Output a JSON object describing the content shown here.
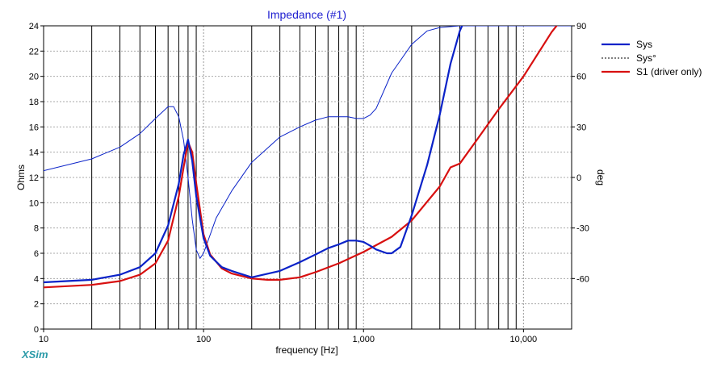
{
  "app": {
    "brand": "XSim"
  },
  "chart_data": {
    "type": "line",
    "title": "Impedance (#1)",
    "xlabel": "frequency [Hz]",
    "ylabel": "Ohms",
    "y2label": "deg",
    "xscale": "log",
    "xlim": [
      10,
      20000
    ],
    "ylim": [
      0,
      24
    ],
    "y2lim": [
      -90,
      90
    ],
    "grid": true,
    "legend_position": "right",
    "x_ticks": [
      {
        "value": 10,
        "label": "10"
      },
      {
        "value": 100,
        "label": "100"
      },
      {
        "value": 1000,
        "label": "1,000"
      },
      {
        "value": 10000,
        "label": "10,000"
      }
    ],
    "y_ticks": [
      {
        "value": 0,
        "label": "0"
      },
      {
        "value": 2,
        "label": "2"
      },
      {
        "value": 4,
        "label": "4"
      },
      {
        "value": 6,
        "label": "6"
      },
      {
        "value": 8,
        "label": "8"
      },
      {
        "value": 10,
        "label": "10"
      },
      {
        "value": 12,
        "label": "12"
      },
      {
        "value": 14,
        "label": "14"
      },
      {
        "value": 16,
        "label": "16"
      },
      {
        "value": 18,
        "label": "18"
      },
      {
        "value": 20,
        "label": "20"
      },
      {
        "value": 22,
        "label": "22"
      },
      {
        "value": 24,
        "label": "24"
      }
    ],
    "y2_ticks": [
      {
        "value": 90,
        "label": "90"
      },
      {
        "value": 60,
        "label": "60"
      },
      {
        "value": 30,
        "label": "30"
      },
      {
        "value": 0,
        "label": "0"
      },
      {
        "value": -30,
        "label": "-30"
      },
      {
        "value": -60,
        "label": "-60"
      }
    ],
    "series": [
      {
        "name": "Sys",
        "axis": "left",
        "color": "#0a22c8",
        "style": "solid-thick",
        "x": [
          10,
          20,
          30,
          40,
          50,
          60,
          70,
          75,
          80,
          85,
          90,
          100,
          110,
          130,
          150,
          200,
          300,
          400,
          500,
          600,
          700,
          800,
          900,
          1000,
          1100,
          1200,
          1400,
          1500,
          1700,
          2000,
          2500,
          3000,
          3500,
          4000,
          4200,
          5000,
          10000,
          20000
        ],
        "y": [
          3.7,
          3.9,
          4.3,
          4.9,
          6.0,
          8.2,
          11.5,
          13.8,
          15.0,
          13.3,
          10.5,
          7.2,
          5.8,
          4.9,
          4.6,
          4.1,
          4.6,
          5.3,
          5.9,
          6.4,
          6.7,
          7.0,
          7.0,
          6.9,
          6.6,
          6.3,
          6.0,
          6.0,
          6.5,
          9.0,
          13.0,
          17.0,
          21.0,
          23.6,
          24.2,
          24.3,
          24.3,
          24.3
        ]
      },
      {
        "name": "Sys°",
        "axis": "right",
        "color": "#0a22c8",
        "style": "thin",
        "x": [
          10,
          20,
          30,
          40,
          50,
          60,
          65,
          70,
          75,
          80,
          85,
          90,
          95,
          100,
          120,
          150,
          200,
          300,
          400,
          500,
          600,
          700,
          800,
          900,
          1000,
          1100,
          1200,
          1500,
          2000,
          2500,
          3000,
          4000,
          5000,
          10000,
          20000
        ],
        "y": [
          4,
          11,
          18,
          26,
          35,
          42,
          42,
          36,
          22,
          0,
          -25,
          -43,
          -48,
          -45,
          -24,
          -8,
          9,
          24,
          30,
          34,
          36,
          36,
          36,
          35,
          35,
          37,
          41,
          62,
          79,
          87,
          89,
          90,
          90,
          90,
          90
        ]
      },
      {
        "name": "S1 (driver only)",
        "axis": "left",
        "color": "#d81010",
        "style": "solid-thick",
        "x": [
          10,
          20,
          30,
          40,
          50,
          60,
          70,
          75,
          80,
          85,
          90,
          100,
          110,
          130,
          150,
          200,
          250,
          300,
          400,
          500,
          700,
          1000,
          1500,
          2000,
          3000,
          3500,
          4000,
          5000,
          7000,
          10000,
          15000,
          20000
        ],
        "y": [
          3.3,
          3.5,
          3.8,
          4.3,
          5.2,
          7.0,
          10.5,
          12.8,
          14.8,
          14.0,
          11.5,
          7.5,
          5.9,
          4.8,
          4.4,
          4.0,
          3.9,
          3.9,
          4.1,
          4.5,
          5.2,
          6.1,
          7.3,
          8.6,
          11.3,
          12.8,
          13.1,
          14.8,
          17.4,
          20.0,
          23.5,
          25.5
        ]
      }
    ]
  }
}
